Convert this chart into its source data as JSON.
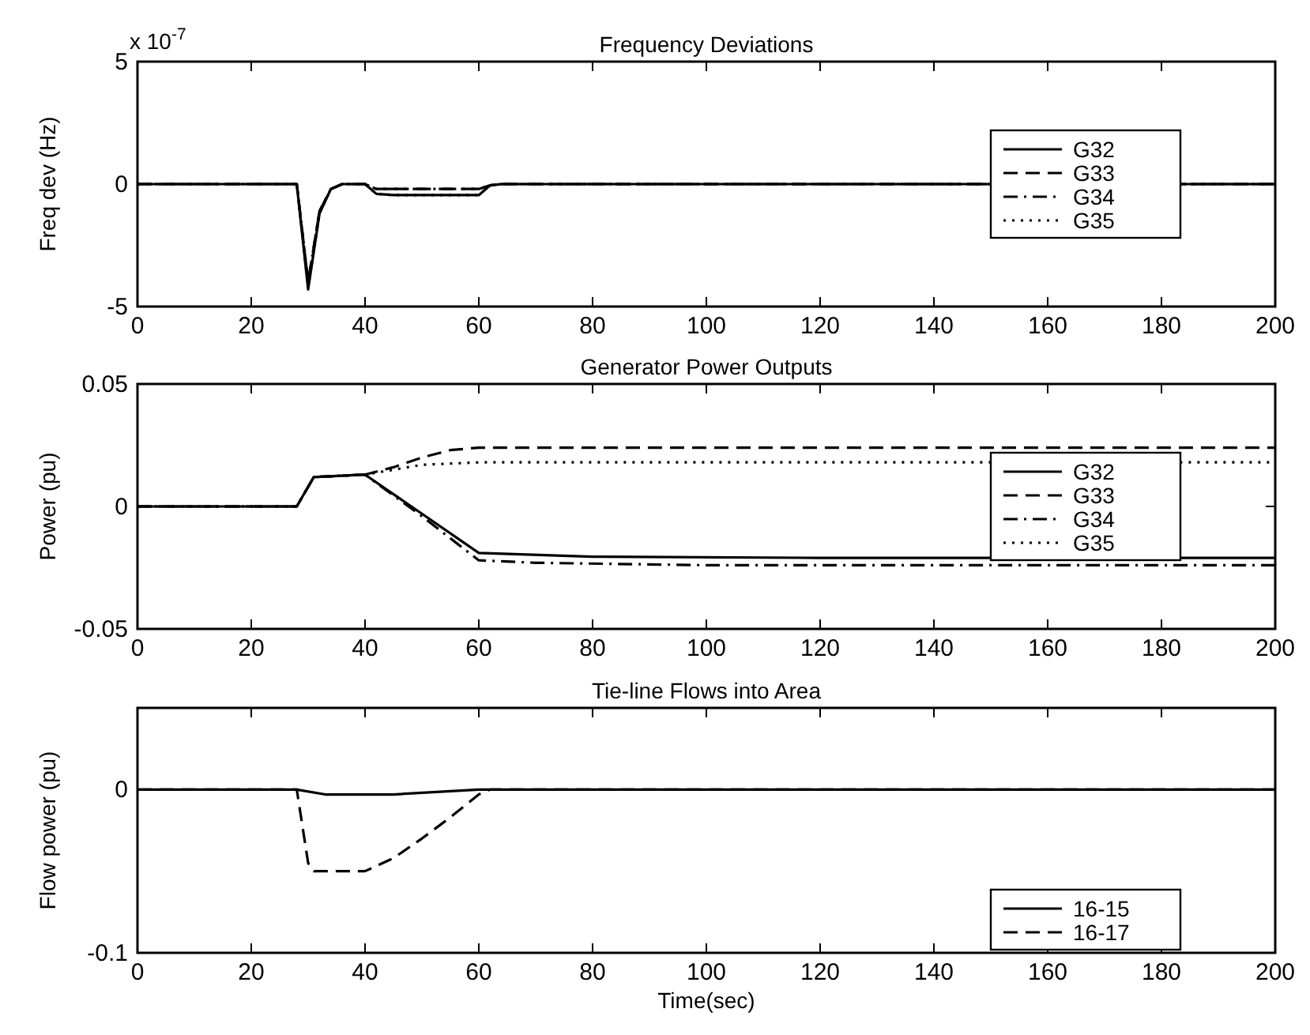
{
  "chart_data": [
    {
      "type": "line",
      "title": "Frequency Deviations",
      "ylabel": "Freq dev (Hz)",
      "annotations": [
        "x 10$^{-7}$"
      ],
      "xlim": [
        0,
        200
      ],
      "xticks": [
        0,
        20,
        40,
        60,
        80,
        100,
        120,
        140,
        160,
        180,
        200
      ],
      "ylim": [
        -5,
        5
      ],
      "yticks": [
        -5,
        0,
        5
      ],
      "legend": "right",
      "series": [
        {
          "name": "G32",
          "color": "#000000",
          "line_style": "solid",
          "x": [
            0,
            28,
            30,
            32,
            34,
            36,
            40,
            42,
            45,
            60,
            62,
            64,
            200
          ],
          "values": [
            0,
            0,
            -4.3,
            -1.2,
            -0.2,
            0,
            0,
            -0.4,
            -0.45,
            -0.45,
            -0.05,
            0,
            0
          ]
        },
        {
          "name": "G33",
          "color": "#000000",
          "line_style": "dashed",
          "x": [
            0,
            28,
            30,
            32,
            34,
            36,
            40,
            42,
            45,
            60,
            62,
            64,
            200
          ],
          "values": [
            0,
            0,
            -4,
            -1.1,
            -0.2,
            0,
            0,
            -0.2,
            -0.2,
            -0.2,
            -0.05,
            0,
            0
          ]
        },
        {
          "name": "G34",
          "color": "#000000",
          "line_style": "dashdot",
          "x": [
            0,
            28,
            30,
            32,
            34,
            36,
            40,
            42,
            45,
            60,
            62,
            64,
            200
          ],
          "values": [
            0,
            0,
            -4,
            -1.1,
            -0.2,
            0,
            0,
            -0.2,
            -0.2,
            -0.2,
            -0.05,
            0,
            0
          ]
        },
        {
          "name": "G35",
          "color": "#000000",
          "line_style": "dotted",
          "x": [
            0,
            28,
            30,
            32,
            34,
            36,
            40,
            42,
            45,
            60,
            62,
            64,
            200
          ],
          "values": [
            0,
            0,
            -4.2,
            -1.2,
            -0.2,
            0,
            0,
            -0.4,
            -0.45,
            -0.45,
            -0.05,
            0,
            0
          ]
        }
      ]
    },
    {
      "type": "line",
      "title": "Generator Power Outputs",
      "ylabel": "Power (pu)",
      "xlim": [
        0,
        200
      ],
      "xticks": [
        0,
        20,
        40,
        60,
        80,
        100,
        120,
        140,
        160,
        180,
        200
      ],
      "ylim": [
        -0.05,
        0.05
      ],
      "yticks": [
        -0.05,
        0,
        0.05
      ],
      "legend": "right",
      "series": [
        {
          "name": "G32",
          "color": "#000000",
          "line_style": "solid",
          "x": [
            0,
            28,
            31,
            40,
            50,
            60,
            80,
            120,
            200
          ],
          "values": [
            0,
            0,
            0.012,
            0.013,
            -0.003,
            -0.019,
            -0.0205,
            -0.021,
            -0.021
          ]
        },
        {
          "name": "G33",
          "color": "#000000",
          "line_style": "dashed",
          "x": [
            0,
            28,
            31,
            40,
            45,
            50,
            55,
            60,
            80,
            200
          ],
          "values": [
            0,
            0,
            0.012,
            0.013,
            0.016,
            0.02,
            0.023,
            0.024,
            0.024,
            0.024
          ]
        },
        {
          "name": "G34",
          "color": "#000000",
          "line_style": "dashdot",
          "x": [
            0,
            28,
            31,
            40,
            50,
            60,
            70,
            100,
            200
          ],
          "values": [
            0,
            0,
            0.012,
            0.013,
            -0.004,
            -0.022,
            -0.023,
            -0.024,
            -0.024
          ]
        },
        {
          "name": "G35",
          "color": "#000000",
          "line_style": "dotted",
          "x": [
            0,
            28,
            31,
            40,
            45,
            50,
            60,
            80,
            200
          ],
          "values": [
            0,
            0,
            0.012,
            0.013,
            0.015,
            0.017,
            0.018,
            0.018,
            0.018
          ]
        }
      ]
    },
    {
      "type": "line",
      "title": "Tie-line Flows into Area",
      "xlabel": "Time(sec)",
      "ylabel": "Flow power (pu)",
      "xlim": [
        0,
        200
      ],
      "xticks": [
        0,
        20,
        40,
        60,
        80,
        100,
        120,
        140,
        160,
        180,
        200
      ],
      "ylim": [
        -0.1,
        0.05
      ],
      "yticks": [
        -0.1,
        0
      ],
      "legend": "bottom right",
      "series": [
        {
          "name": "16-15",
          "color": "#000000",
          "line_style": "solid",
          "x": [
            0,
            28,
            33,
            45,
            60,
            200
          ],
          "values": [
            0,
            0,
            -0.003,
            -0.003,
            0,
            0
          ]
        },
        {
          "name": "16-17",
          "color": "#000000",
          "line_style": "dashed",
          "x": [
            0,
            28,
            30,
            31,
            40,
            45,
            50,
            55,
            60,
            62,
            200
          ],
          "values": [
            0,
            0,
            -0.045,
            -0.05,
            -0.05,
            -0.042,
            -0.03,
            -0.017,
            -0.003,
            0,
            0
          ]
        }
      ]
    }
  ]
}
